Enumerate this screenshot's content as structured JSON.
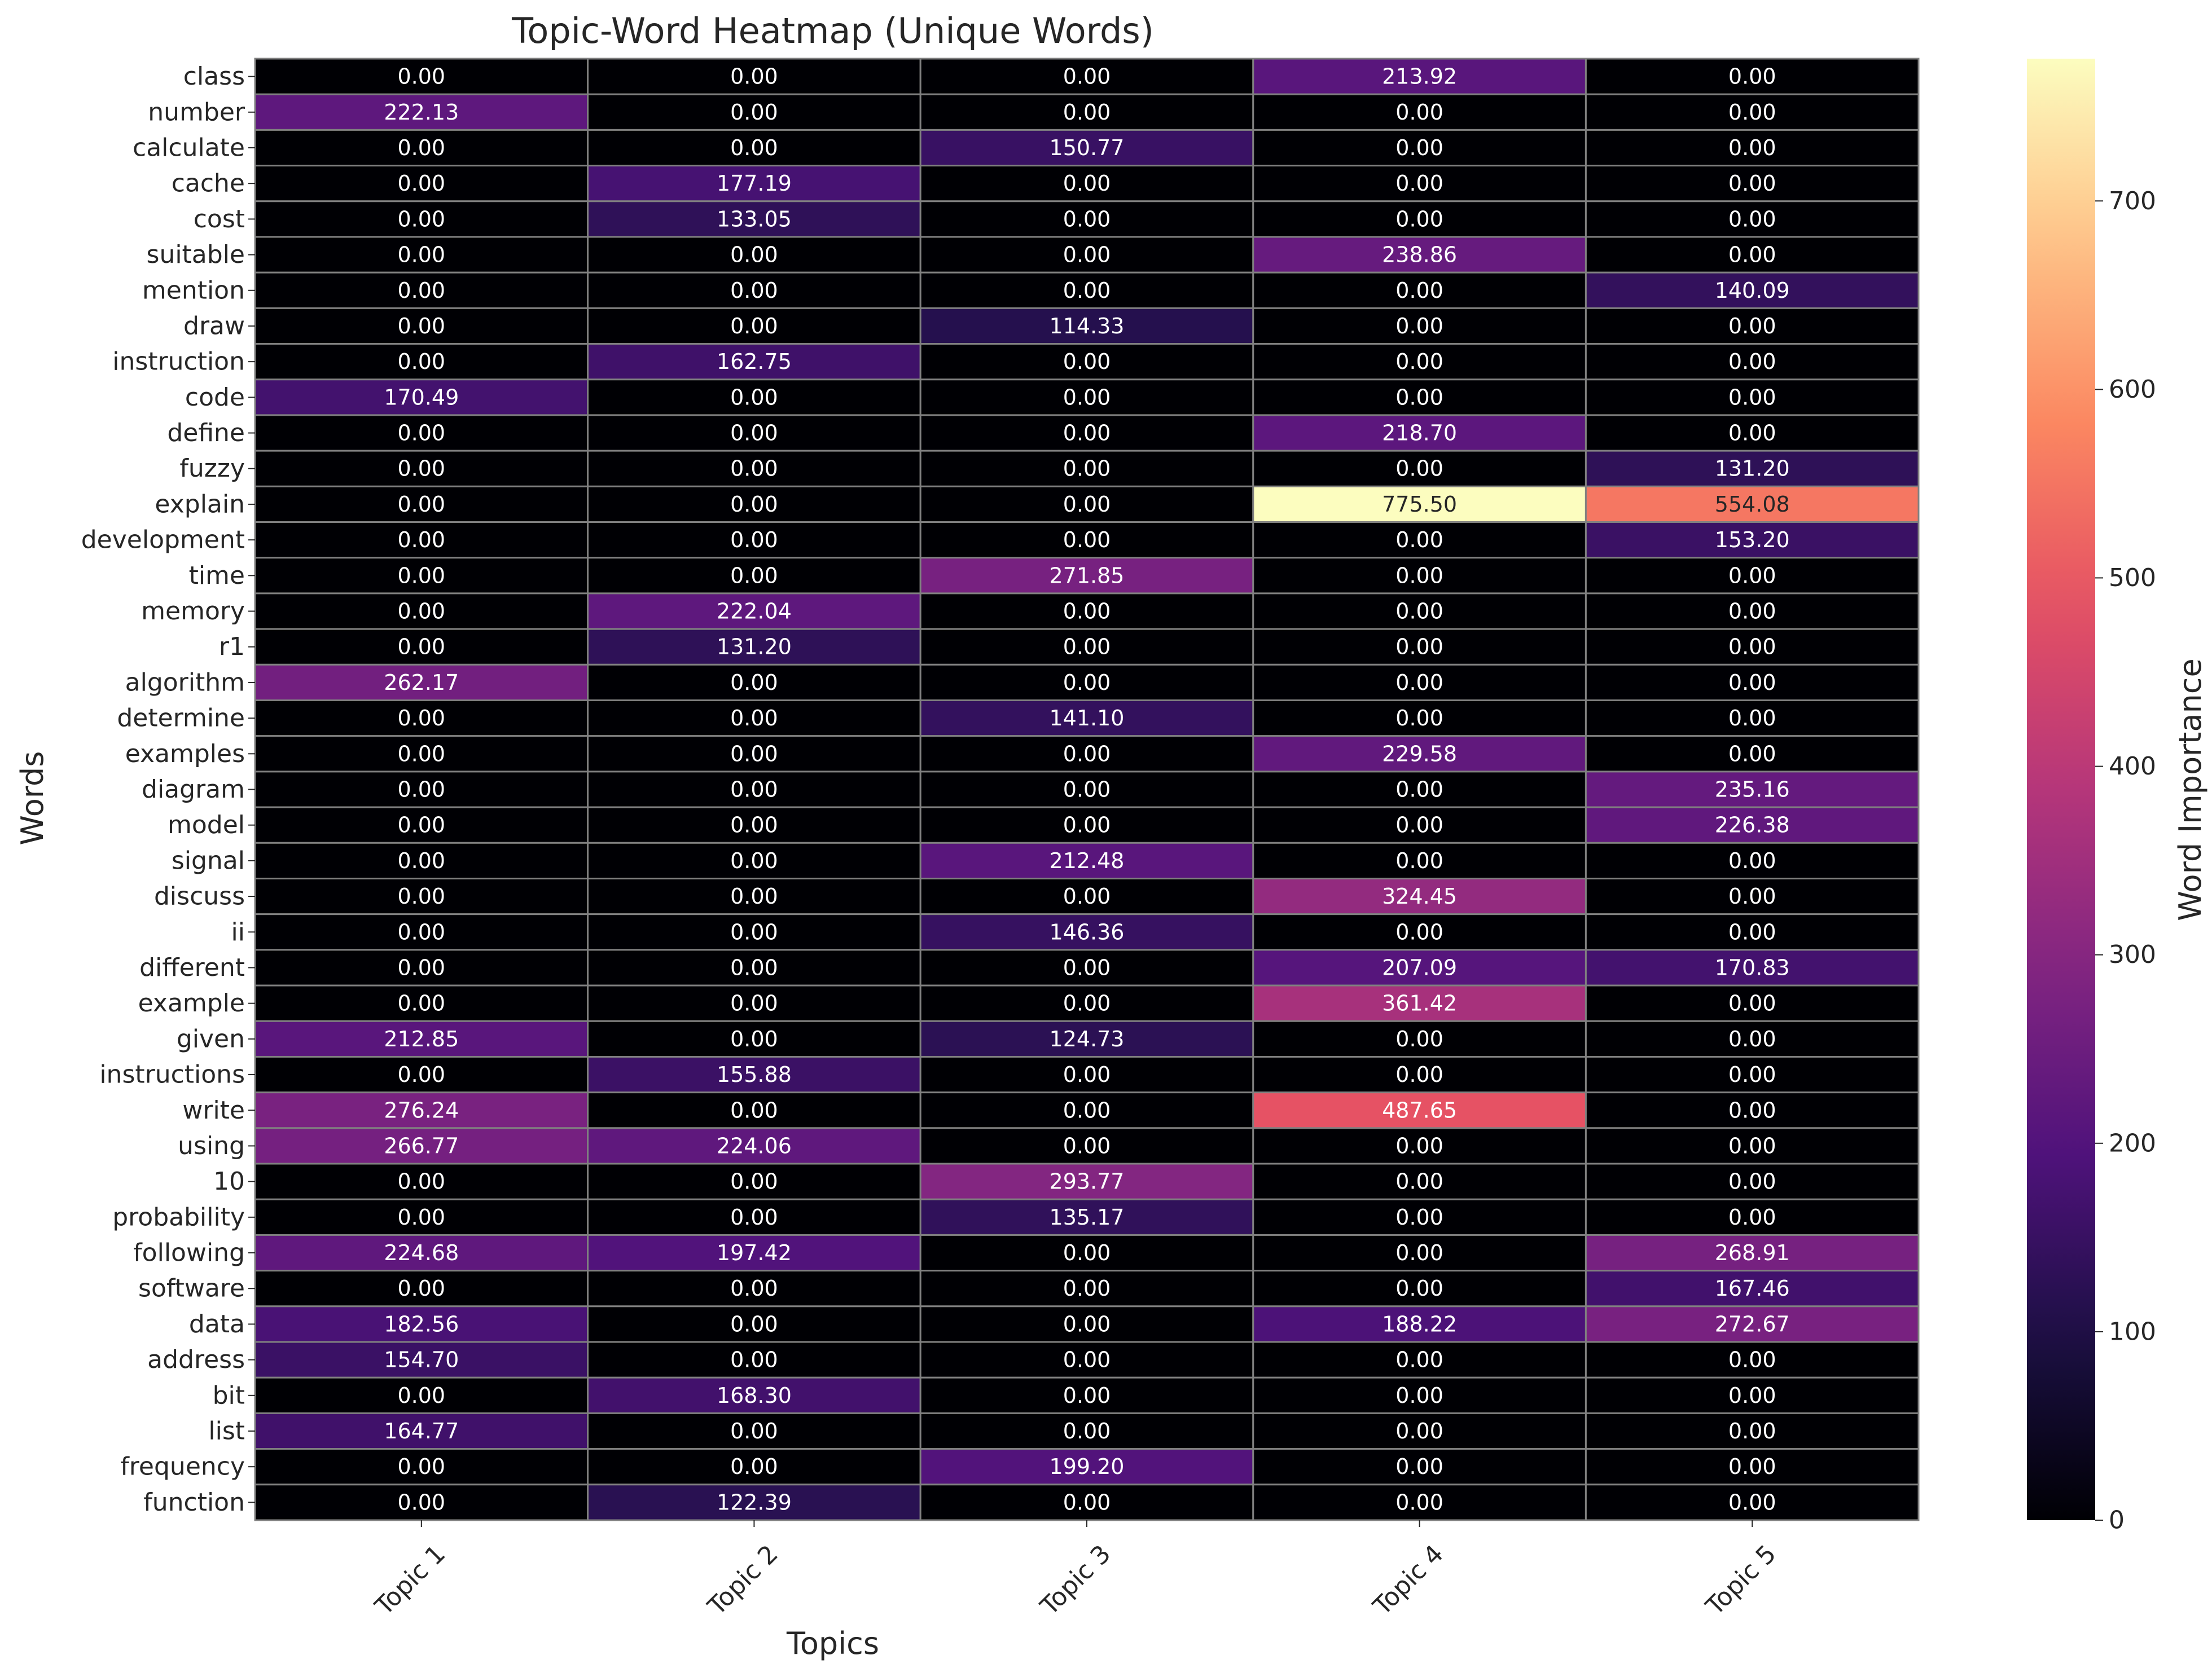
{
  "chart_data": {
    "type": "heatmap",
    "title": "Topic-Word Heatmap (Unique Words)",
    "xlabel": "Topics",
    "ylabel": "Words",
    "colorbar_label": "Word Importance",
    "colormap": "magma",
    "vmin": 0,
    "vmax": 775.5,
    "colorbar_ticks": [
      "0",
      "100",
      "200",
      "300",
      "400",
      "500",
      "600",
      "700"
    ],
    "colorbar_tick_values": [
      0,
      100,
      200,
      300,
      400,
      500,
      600,
      700
    ],
    "cell_border_color": "#808080",
    "columns": [
      "Topic 1",
      "Topic 2",
      "Topic 3",
      "Topic 4",
      "Topic 5"
    ],
    "rows": [
      "class",
      "number",
      "calculate",
      "cache",
      "cost",
      "suitable",
      "mention",
      "draw",
      "instruction",
      "code",
      "define",
      "fuzzy",
      "explain",
      "development",
      "time",
      "memory",
      "r1",
      "algorithm",
      "determine",
      "examples",
      "diagram",
      "model",
      "signal",
      "discuss",
      "ii",
      "different",
      "example",
      "given",
      "instructions",
      "write",
      "using",
      "10",
      "probability",
      "following",
      "software",
      "data",
      "address",
      "bit",
      "list",
      "frequency",
      "function"
    ],
    "values": [
      [
        0.0,
        0.0,
        0.0,
        213.92,
        0.0
      ],
      [
        222.13,
        0.0,
        0.0,
        0.0,
        0.0
      ],
      [
        0.0,
        0.0,
        150.77,
        0.0,
        0.0
      ],
      [
        0.0,
        177.19,
        0.0,
        0.0,
        0.0
      ],
      [
        0.0,
        133.05,
        0.0,
        0.0,
        0.0
      ],
      [
        0.0,
        0.0,
        0.0,
        238.86,
        0.0
      ],
      [
        0.0,
        0.0,
        0.0,
        0.0,
        140.09
      ],
      [
        0.0,
        0.0,
        114.33,
        0.0,
        0.0
      ],
      [
        0.0,
        162.75,
        0.0,
        0.0,
        0.0
      ],
      [
        170.49,
        0.0,
        0.0,
        0.0,
        0.0
      ],
      [
        0.0,
        0.0,
        0.0,
        218.7,
        0.0
      ],
      [
        0.0,
        0.0,
        0.0,
        0.0,
        131.2
      ],
      [
        0.0,
        0.0,
        0.0,
        775.5,
        554.08
      ],
      [
        0.0,
        0.0,
        0.0,
        0.0,
        153.2
      ],
      [
        0.0,
        0.0,
        271.85,
        0.0,
        0.0
      ],
      [
        0.0,
        222.04,
        0.0,
        0.0,
        0.0
      ],
      [
        0.0,
        131.2,
        0.0,
        0.0,
        0.0
      ],
      [
        262.17,
        0.0,
        0.0,
        0.0,
        0.0
      ],
      [
        0.0,
        0.0,
        141.1,
        0.0,
        0.0
      ],
      [
        0.0,
        0.0,
        0.0,
        229.58,
        0.0
      ],
      [
        0.0,
        0.0,
        0.0,
        0.0,
        235.16
      ],
      [
        0.0,
        0.0,
        0.0,
        0.0,
        226.38
      ],
      [
        0.0,
        0.0,
        212.48,
        0.0,
        0.0
      ],
      [
        0.0,
        0.0,
        0.0,
        324.45,
        0.0
      ],
      [
        0.0,
        0.0,
        146.36,
        0.0,
        0.0
      ],
      [
        0.0,
        0.0,
        0.0,
        207.09,
        170.83
      ],
      [
        0.0,
        0.0,
        0.0,
        361.42,
        0.0
      ],
      [
        212.85,
        0.0,
        124.73,
        0.0,
        0.0
      ],
      [
        0.0,
        155.88,
        0.0,
        0.0,
        0.0
      ],
      [
        276.24,
        0.0,
        0.0,
        487.65,
        0.0
      ],
      [
        266.77,
        224.06,
        0.0,
        0.0,
        0.0
      ],
      [
        0.0,
        0.0,
        293.77,
        0.0,
        0.0
      ],
      [
        0.0,
        0.0,
        135.17,
        0.0,
        0.0
      ],
      [
        224.68,
        197.42,
        0.0,
        0.0,
        268.91
      ],
      [
        0.0,
        0.0,
        0.0,
        0.0,
        167.46
      ],
      [
        182.56,
        0.0,
        0.0,
        188.22,
        272.67
      ],
      [
        154.7,
        0.0,
        0.0,
        0.0,
        0.0
      ],
      [
        0.0,
        168.3,
        0.0,
        0.0,
        0.0
      ],
      [
        164.77,
        0.0,
        0.0,
        0.0,
        0.0
      ],
      [
        0.0,
        0.0,
        199.2,
        0.0,
        0.0
      ],
      [
        0.0,
        122.39,
        0.0,
        0.0,
        0.0
      ]
    ]
  }
}
